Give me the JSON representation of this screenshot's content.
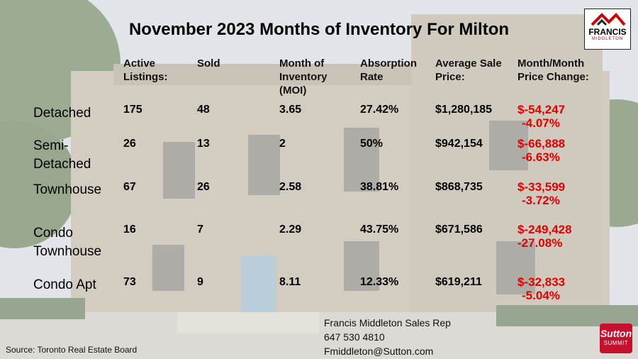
{
  "title": "November 2023 Months of Inventory For Milton",
  "headers": {
    "active": [
      "Active",
      "Listings:"
    ],
    "sold": [
      "Sold"
    ],
    "moi": [
      "Month of",
      "Inventory",
      "(MOI)"
    ],
    "absorption": [
      "Absorption",
      "Rate"
    ],
    "avg_price": [
      "Average Sale",
      "Price:"
    ],
    "mom_change": [
      "Month/Month",
      "Price Change:"
    ]
  },
  "rows": [
    {
      "label": [
        "Detached"
      ],
      "active": "175",
      "sold": "48",
      "moi": "3.65",
      "absorption": "27.42%",
      "avg_price": "$1,280,185",
      "change_amount": "$-54,247",
      "change_pct": "-4.07%"
    },
    {
      "label": [
        "Semi-",
        "Detached"
      ],
      "active": "26",
      "sold": "13",
      "moi": "2",
      "absorption": "50%",
      "avg_price": "$942,154",
      "change_amount": "$-66,888",
      "change_pct": "-6.63%"
    },
    {
      "label": [
        "Townhouse"
      ],
      "active": "67",
      "sold": "26",
      "moi": "2.58",
      "absorption": "38.81%",
      "avg_price": "$868,735",
      "change_amount": "$-33,599",
      "change_pct": "-3.72%"
    },
    {
      "label": [
        "Condo",
        "Townhouse"
      ],
      "active": "16",
      "sold": "7",
      "moi": "2.29",
      "absorption": "43.75%",
      "avg_price": "$671,586",
      "change_amount": "$-249,428",
      "change_pct": "-27.08%"
    },
    {
      "label": [
        "Condo Apt"
      ],
      "active": "73",
      "sold": "9",
      "moi": "8.11",
      "absorption": "12.33%",
      "avg_price": "$619,211",
      "change_amount": "$-32,833",
      "change_pct": "-5.04%"
    }
  ],
  "contact": {
    "name": "Francis Middleton Sales Rep",
    "phone": "647 530 4810",
    "email": "Fmiddleton@Sutton.com"
  },
  "source": "Source: Toronto Real Estate Board",
  "logos": {
    "francis_name": "FRANCIS",
    "francis_sub": "MIDDLETON",
    "sutton": "Sutton",
    "summit": "SUMMIT"
  },
  "colors": {
    "negative": "#e00000",
    "sutton_red": "#c8102e"
  }
}
